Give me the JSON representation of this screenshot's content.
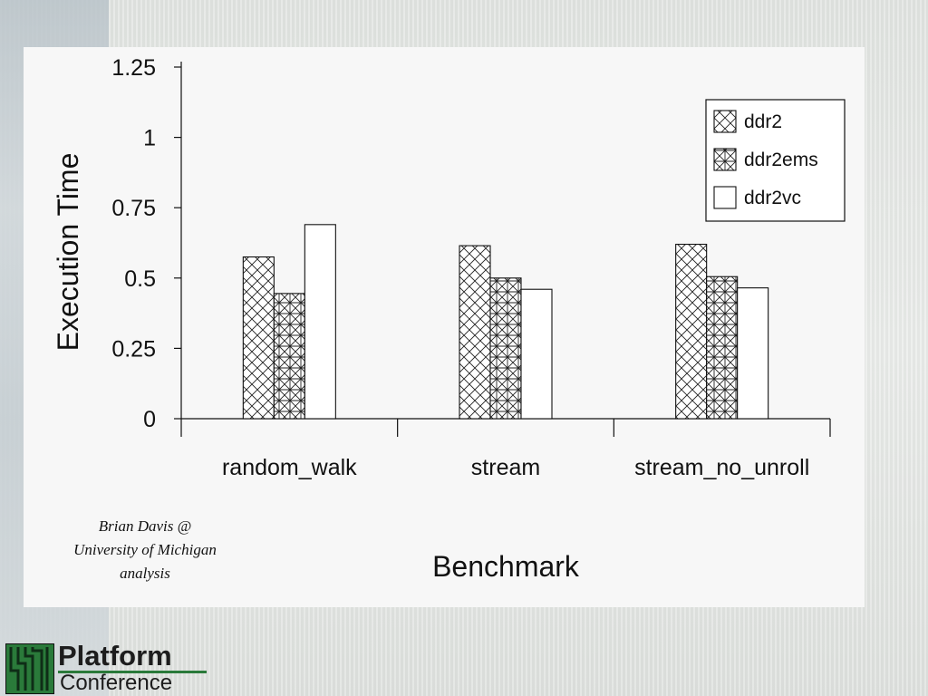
{
  "chart_data": {
    "type": "bar",
    "categories": [
      "random_walk",
      "stream",
      "stream_no_unroll"
    ],
    "series": [
      {
        "name": "ddr2",
        "values": [
          0.575,
          0.615,
          0.62
        ],
        "pattern": "crosshatch-diagonal"
      },
      {
        "name": "ddr2ems",
        "values": [
          0.445,
          0.5,
          0.505
        ],
        "pattern": "crosshatch-grid"
      },
      {
        "name": "ddr2vc",
        "values": [
          0.69,
          0.46,
          0.465
        ],
        "pattern": "none"
      }
    ],
    "xlabel": "Benchmark",
    "ylabel": "Execution Time",
    "ylim": [
      0,
      1.25
    ],
    "yticks": [
      0,
      0.25,
      0.5,
      0.75,
      1,
      1.25
    ],
    "ytick_labels": [
      "0",
      "0.25",
      "0.5",
      "0.75",
      "1",
      "1.25"
    ],
    "grid": false,
    "legend_position": "top-right"
  },
  "credit": {
    "line1": "Brian Davis @",
    "line2": "University of Michigan",
    "line3": "analysis"
  },
  "logo": {
    "word1": "Platform",
    "word2": "Conference",
    "accent_color": "#2a7a3a"
  }
}
